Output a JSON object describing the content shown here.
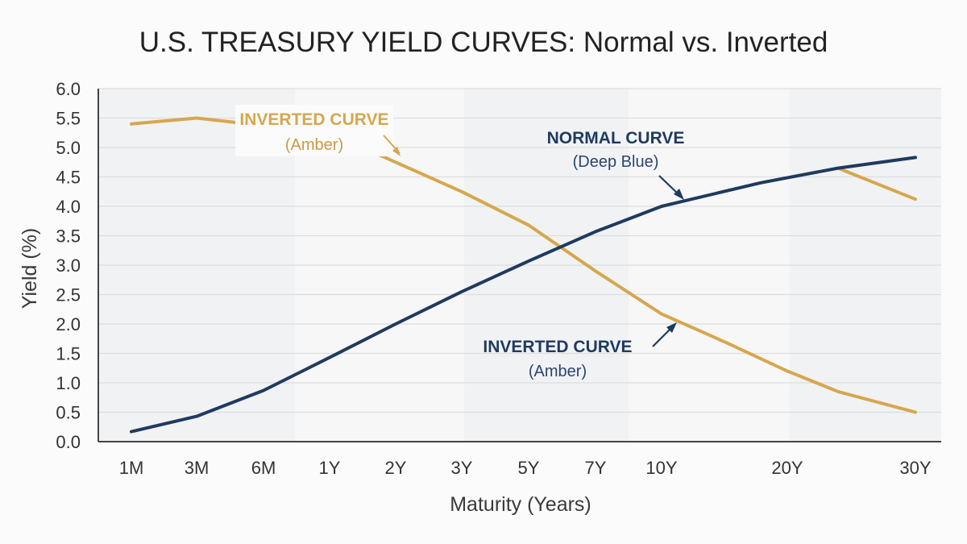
{
  "chart_data": {
    "type": "line",
    "title": "U.S. TREASURY YIELD CURVES: Normal vs. Inverted",
    "xlabel": "Maturity (Years)",
    "ylabel": "Yield (%)",
    "ylim": [
      0,
      6
    ],
    "yticks": [
      "0.0",
      "0.5",
      "1.0",
      "1.5",
      "2.0",
      "2.5",
      "3.0",
      "3.5",
      "4.0",
      "4.5",
      "5.0",
      "5.5",
      "6.0"
    ],
    "x_tick_labels": [
      "1M",
      "3M",
      "6M",
      "1Y",
      "2Y",
      "3Y",
      "5Y",
      "7Y",
      "10Y",
      "20Y",
      "30Y"
    ],
    "grid": "horizontal",
    "series": [
      {
        "name": "NORMAL CURVE",
        "color": "#1f3a5f",
        "points": [
          {
            "x": "1M",
            "y": 0.17
          },
          {
            "x": "3M",
            "y": 0.43
          },
          {
            "x": "6M",
            "y": 0.87
          },
          {
            "x": "1Y",
            "y": 1.43
          },
          {
            "x": "2Y",
            "y": 2.0
          },
          {
            "x": "3Y",
            "y": 2.55
          },
          {
            "x": "5Y",
            "y": 3.07
          },
          {
            "x": "7Y",
            "y": 3.57
          },
          {
            "x": "10Y",
            "y": 4.0
          },
          {
            "x": "15Y",
            "y": 4.4
          },
          {
            "x": "25Y",
            "y": 4.65
          },
          {
            "x": "30Y",
            "y": 4.83
          }
        ]
      },
      {
        "name": "INVERTED CURVE",
        "color": "#d6a74e",
        "points": [
          {
            "x": "1M",
            "y": 5.4
          },
          {
            "x": "3M",
            "y": 5.5
          },
          {
            "x": "4.5M",
            "y": 5.43
          },
          {
            "x": "1.5Y",
            "y": 5.05
          },
          {
            "x": "2Y",
            "y": 4.75
          },
          {
            "x": "3Y",
            "y": 4.25
          },
          {
            "x": "5Y",
            "y": 3.68
          },
          {
            "x": "7Y",
            "y": 2.9
          },
          {
            "x": "10Y",
            "y": 2.17
          },
          {
            "x": "12Y",
            "y": 1.68
          },
          {
            "x": "20Y",
            "y": 1.2
          },
          {
            "x": "25Y",
            "y": 0.85
          },
          {
            "x": "30Y",
            "y": 0.5
          }
        ],
        "overlay_segment": [
          {
            "x": "25Y",
            "y": 4.65
          },
          {
            "x": "30Y",
            "y": 4.12
          }
        ]
      }
    ],
    "annotations": [
      {
        "title": "INVERTED CURVE",
        "subtitle": "(Amber)",
        "color": "#d6a74e",
        "subtitle_color": "#c99a45",
        "points_to_series": "INVERTED CURVE"
      },
      {
        "title": "NORMAL CURVE",
        "subtitle": "(Deep Blue)",
        "color": "#1f3a5f",
        "subtitle_color": "#2a4670",
        "points_to_series": "NORMAL CURVE"
      },
      {
        "title": "INVERTED CURVE",
        "subtitle": "(Amber)",
        "color": "#1f3a5f",
        "subtitle_color": "#2a4670",
        "points_to_series": "INVERTED CURVE"
      }
    ]
  }
}
